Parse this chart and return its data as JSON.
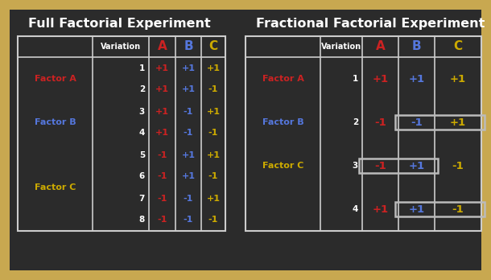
{
  "bg_outer": "#c8a850",
  "bg_inner": "#2b2b2b",
  "title_left": "Full Factorial Experiment",
  "title_right": "Fractional Factorial Experiment",
  "title_color": "#ffffff",
  "variation_label": "Variation",
  "col_headers": [
    "A",
    "B",
    "C"
  ],
  "col_header_colors": [
    "#cc2222",
    "#5577dd",
    "#ccaa00"
  ],
  "factor_labels": [
    "Factor A",
    "Factor B",
    "Factor C"
  ],
  "factor_colors": [
    "#cc2222",
    "#5577dd",
    "#ccaa00"
  ],
  "full_rows": [
    {
      "var": "1",
      "A": "+1",
      "B": "+1",
      "C": "+1"
    },
    {
      "var": "2",
      "A": "+1",
      "B": "+1",
      "C": "-1"
    },
    {
      "var": "3",
      "A": "+1",
      "B": "-1",
      "C": "+1"
    },
    {
      "var": "4",
      "A": "+1",
      "B": "-1",
      "C": "-1"
    },
    {
      "var": "5",
      "A": "-1",
      "B": "+1",
      "C": "+1"
    },
    {
      "var": "6",
      "A": "-1",
      "B": "+1",
      "C": "-1"
    },
    {
      "var": "7",
      "A": "-1",
      "B": "-1",
      "C": "+1"
    },
    {
      "var": "8",
      "A": "-1",
      "B": "-1",
      "C": "-1"
    }
  ],
  "frac_rows": [
    {
      "var": "1",
      "A": "+1",
      "B": "+1",
      "C": "+1"
    },
    {
      "var": "2",
      "A": "-1",
      "B": "-1",
      "C": "+1"
    },
    {
      "var": "3",
      "A": "-1",
      "B": "+1",
      "C": "-1"
    },
    {
      "var": "4",
      "A": "+1",
      "B": "+1",
      "C": "-1"
    }
  ],
  "col_colors": {
    "A": "#cc2222",
    "B": "#5577dd",
    "C": "#ccaa00"
  },
  "table_line_color": "#cccccc",
  "box_color": "#bbbbbb"
}
